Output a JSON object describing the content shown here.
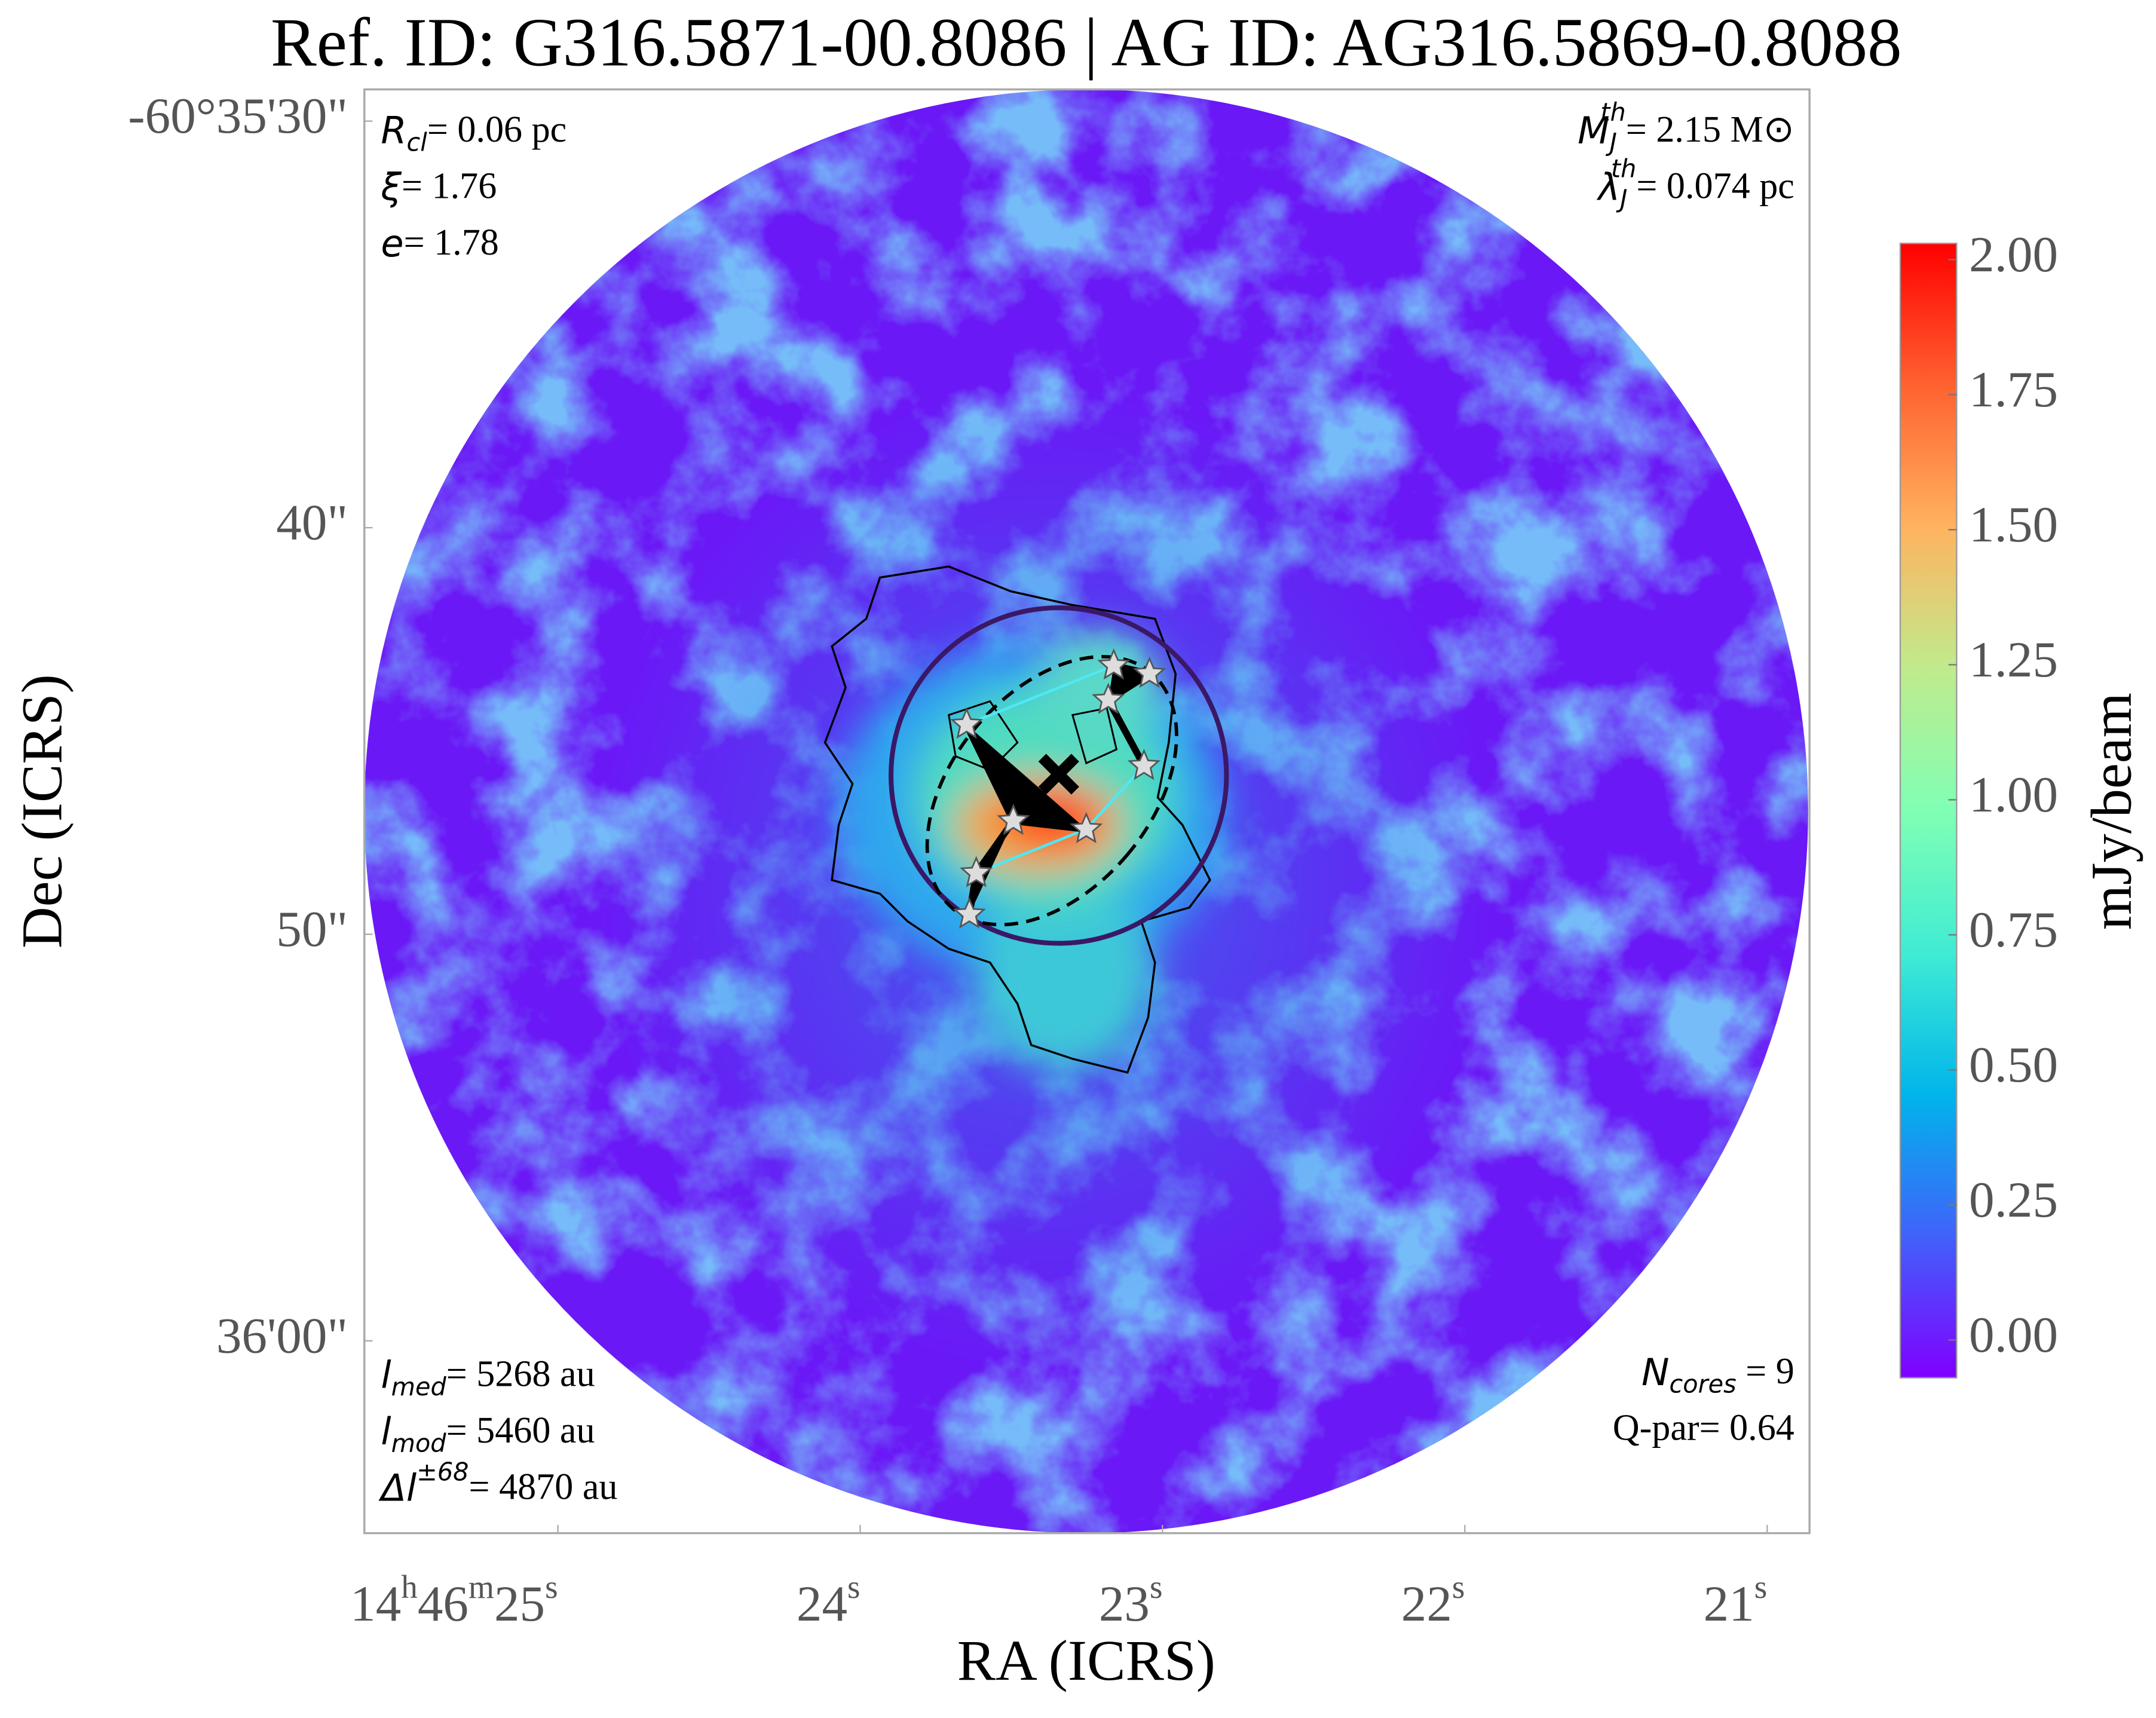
{
  "chart_data": {
    "type": "image",
    "title": "Ref. ID: G316.5871-00.8086 | AG ID: AG316.5869-0.8088",
    "xlabel": "RA (ICRS)",
    "ylabel": "Dec (ICRS)",
    "xlim": [
      25.64,
      20.86
    ],
    "xticks": [
      {
        "value": 25,
        "label": "14h46m25s"
      },
      {
        "value": 24,
        "label": "24s"
      },
      {
        "value": 23,
        "label": "23s"
      },
      {
        "value": 22,
        "label": "22s"
      },
      {
        "value": 21,
        "label": "21s"
      }
    ],
    "ylim": [
      64.73,
      29.22
    ],
    "yticks": [
      {
        "value": 30,
        "label": "-60°35'30\""
      },
      {
        "value": 40,
        "label": "40\""
      },
      {
        "value": 50,
        "label": "50\""
      },
      {
        "value": 60,
        "label": "36'00\""
      }
    ],
    "colorbar": {
      "label": "mJy/beam",
      "cmap": "rainbow",
      "clim": [
        -0.07,
        2.03
      ],
      "ticks": [
        {
          "value": 0,
          "label": "0.00"
        },
        {
          "value": 0.25,
          "label": "0.25"
        },
        {
          "value": 0.5,
          "label": "0.50"
        },
        {
          "value": 0.75,
          "label": "0.75"
        },
        {
          "value": 1,
          "label": "1.00"
        },
        {
          "value": 1.25,
          "label": "1.25"
        },
        {
          "value": 1.5,
          "label": "1.50"
        },
        {
          "value": 1.75,
          "label": "1.75"
        },
        {
          "value": 2,
          "label": "2.00"
        }
      ]
    },
    "annotations": {
      "top_left": [
        {
          "symbol": "R",
          "sub": "cl",
          "text": "= 0.06 pc"
        },
        {
          "symbol": "ξ",
          "text": "= 1.76"
        },
        {
          "symbol": "e",
          "text": "= 1.78"
        }
      ],
      "top_right": [
        {
          "symbol": "M",
          "sub": "J",
          "sup": "th",
          "text": "= 2.15 M⊙"
        },
        {
          "symbol": "λ",
          "sub": "J",
          "sup": "th",
          "text": "= 0.074 pc"
        }
      ],
      "bottom_left": [
        {
          "symbol": "l",
          "sub": "med",
          "text": "= 5268 au"
        },
        {
          "symbol": "l",
          "sub": "mod",
          "text": "= 5460 au"
        },
        {
          "symbol": "Δl",
          "sup": "±68",
          "text": "= 4870 au"
        }
      ],
      "bottom_right": [
        {
          "symbol": "N",
          "sub": "cores",
          "text": " = 9"
        },
        {
          "text": "Q-par= 0.64"
        }
      ]
    }
  }
}
